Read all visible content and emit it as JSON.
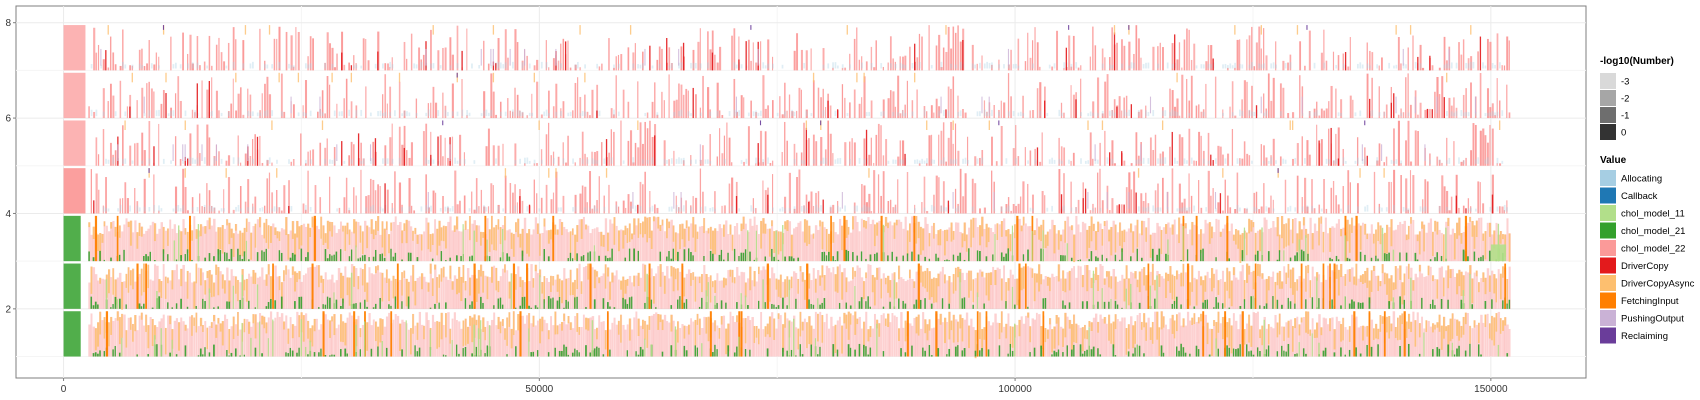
{
  "chart_data": {
    "type": "bar",
    "title": "",
    "xlabel": "",
    "ylabel": "",
    "xlim": [
      -5000,
      160000
    ],
    "ylim": [
      0.55,
      8.35
    ],
    "x_ticks": [
      0,
      50000,
      100000,
      150000
    ],
    "x_tick_labels": [
      "0",
      "50000",
      "100000",
      "150000"
    ],
    "y_ticks": [
      2,
      4,
      6,
      8
    ],
    "y_tick_labels": [
      "2",
      "4",
      "6",
      "8"
    ],
    "grid": true,
    "legend_placement": "right",
    "x_end": 152000,
    "lanes": [
      {
        "lane": 1,
        "base": 1,
        "kind": "gpu"
      },
      {
        "lane": 2,
        "base": 2,
        "kind": "gpu"
      },
      {
        "lane": 3,
        "base": 3,
        "kind": "gpu"
      },
      {
        "lane": 4,
        "base": 4,
        "kind": "cpu"
      },
      {
        "lane": 5,
        "base": 5,
        "kind": "cpu"
      },
      {
        "lane": 6,
        "base": 6,
        "kind": "cpu"
      },
      {
        "lane": 7,
        "base": 7,
        "kind": "cpu"
      }
    ],
    "alpha_legend": {
      "title": "-log10(Number)",
      "entries": [
        {
          "label": "-3",
          "color": "#d9d9d9"
        },
        {
          "label": "-2",
          "color": "#a6a6a6"
        },
        {
          "label": "-1",
          "color": "#6e6e6e"
        },
        {
          "label": "0",
          "color": "#333333"
        }
      ]
    },
    "value_legend": {
      "title": "Value",
      "entries": [
        {
          "label": "Allocating",
          "color": "#a6cee3"
        },
        {
          "label": "Callback",
          "color": "#1f78b4"
        },
        {
          "label": "chol_model_11",
          "color": "#b2df8a"
        },
        {
          "label": "chol_model_21",
          "color": "#33a02c"
        },
        {
          "label": "chol_model_22",
          "color": "#fb9a99"
        },
        {
          "label": "DriverCopy",
          "color": "#e31a1c"
        },
        {
          "label": "DriverCopyAsync",
          "color": "#fdbf6f"
        },
        {
          "label": "FetchingInput",
          "color": "#ff7f00"
        },
        {
          "label": "PushingOutput",
          "color": "#cab2d6"
        },
        {
          "label": "Reclaiming",
          "color": "#6a3d9a"
        }
      ]
    }
  }
}
